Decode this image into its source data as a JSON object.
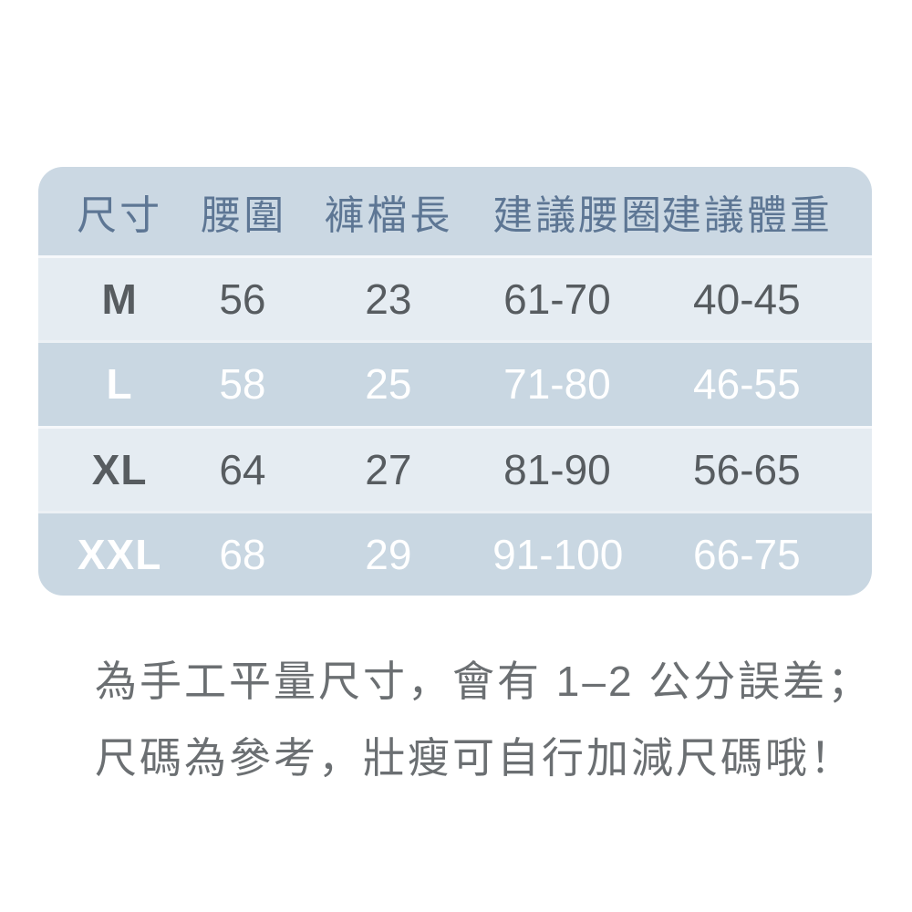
{
  "colors": {
    "header_bg": "#cbd8e3",
    "row_light_bg": "#e5ecf2",
    "row_dark_bg": "#c9d7e2",
    "header_text": "#5d7694",
    "row_text_dark": "#575c60",
    "row_text_white": "#ffffff",
    "note_text": "#6b6f72"
  },
  "chart_data": {
    "type": "table",
    "columns": [
      "尺寸",
      "腰圍",
      "褲檔長",
      "建議腰圈",
      "建議體重"
    ],
    "rows": [
      [
        "M",
        "56",
        "23",
        "61-70",
        "40-45"
      ],
      [
        "L",
        "58",
        "25",
        "71-80",
        "46-55"
      ],
      [
        "XL",
        "64",
        "27",
        "81-90",
        "56-65"
      ],
      [
        "XXL",
        "68",
        "29",
        "91-100",
        "66-75"
      ]
    ]
  },
  "note": {
    "line1": "為手工平量尺寸，會有 1–2 公分誤差；",
    "line2": "尺碼為參考，壯瘦可自行加減尺碼哦！"
  }
}
